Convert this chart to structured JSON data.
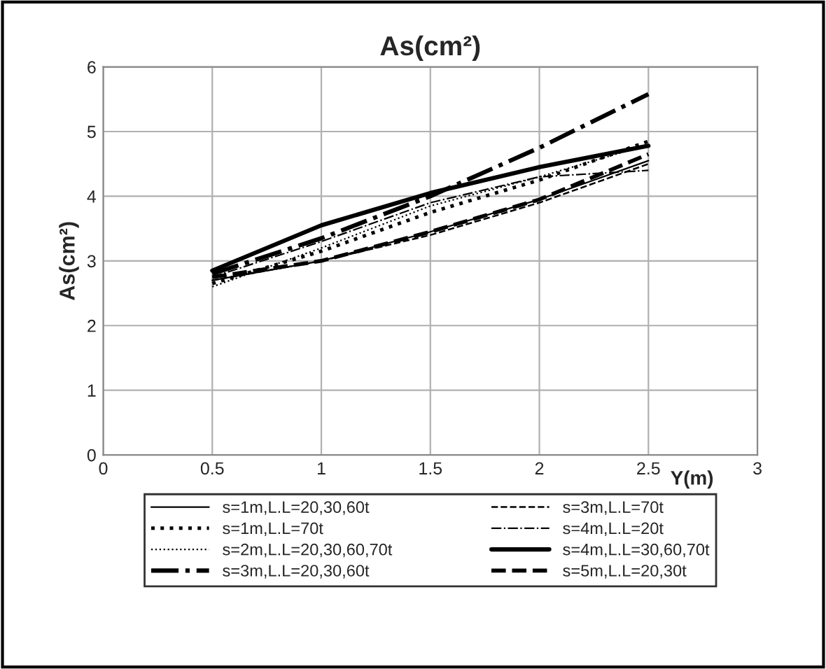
{
  "chart_data": {
    "type": "line",
    "title": "As(cm²)",
    "ylabel": "As(cm²)",
    "xlabel": "Y(m)",
    "x": [
      0.5,
      1,
      1.5,
      2,
      2.5
    ],
    "xlim": [
      0,
      3
    ],
    "xticks": [
      0,
      0.5,
      1,
      1.5,
      2,
      2.5,
      3
    ],
    "ylim": [
      0,
      6
    ],
    "yticks": [
      0,
      1,
      2,
      3,
      4,
      5,
      6
    ],
    "grid": true,
    "legend": "bottom",
    "marker": "none",
    "series": [
      {
        "name": "s=1m,L.L=20,30,60t",
        "color": "#000000",
        "line_style": "solid",
        "values": [
          2.7,
          3.0,
          3.45,
          3.95,
          4.55
        ]
      },
      {
        "name": "s=1m,L.L=70t",
        "color": "#000000",
        "line_style": "dotted",
        "values": [
          2.65,
          3.15,
          3.75,
          4.25,
          4.85
        ]
      },
      {
        "name": "s=2m,L.L=20,30,60,70t",
        "color": "#000000",
        "line_style": "dotted",
        "values": [
          2.6,
          3.2,
          3.85,
          4.3,
          4.8
        ]
      },
      {
        "name": "s=3m,L.L=20,30,60t",
        "color": "#000000",
        "line_style": "dashdot",
        "values": [
          2.8,
          3.35,
          4.0,
          4.75,
          5.58
        ]
      },
      {
        "name": "s=3m,L.L=70t",
        "color": "#000000",
        "line_style": "dashed",
        "values": [
          2.7,
          3.0,
          3.4,
          3.9,
          4.5
        ]
      },
      {
        "name": "s=4m,L.L=20t",
        "color": "#000000",
        "line_style": "dashdot",
        "values": [
          2.75,
          3.3,
          3.9,
          4.3,
          4.4
        ]
      },
      {
        "name": "s=4m,L.L=30,60,70t",
        "color": "#000000",
        "line_style": "solid",
        "values": [
          2.85,
          3.55,
          4.05,
          4.45,
          4.78
        ]
      },
      {
        "name": "s=5m,L.L=20,30t",
        "color": "#000000",
        "line_style": "dashed",
        "values": [
          2.75,
          3.0,
          3.45,
          3.95,
          4.65
        ]
      }
    ]
  }
}
